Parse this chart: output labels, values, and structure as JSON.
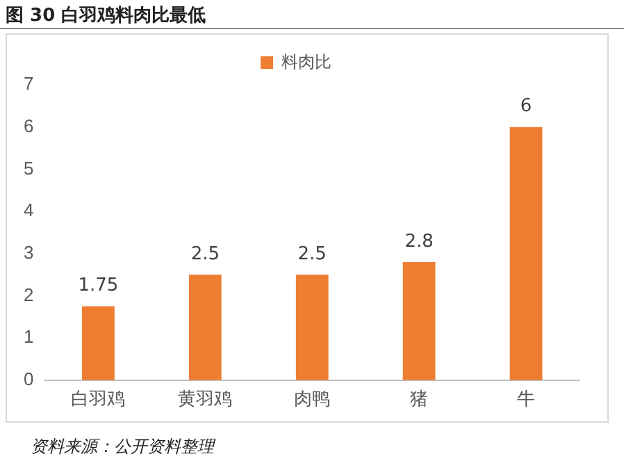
{
  "chart_data": {
    "type": "bar",
    "title": "图 30 白羽鸡料肉比最低",
    "categories": [
      "白羽鸡",
      "黄羽鸡",
      "肉鸭",
      "猪",
      "牛"
    ],
    "series": [
      {
        "name": "料肉比",
        "color": "#ed7d31",
        "values": [
          1.75,
          2.5,
          2.5,
          2.8,
          6
        ]
      }
    ],
    "ylim": [
      0,
      7
    ],
    "yticks": [
      0,
      1,
      2,
      3,
      4,
      5,
      6,
      7
    ],
    "grid": false,
    "legend": "top",
    "data_labels": true,
    "annotations": [
      "资料来源：公开资料整理"
    ]
  }
}
